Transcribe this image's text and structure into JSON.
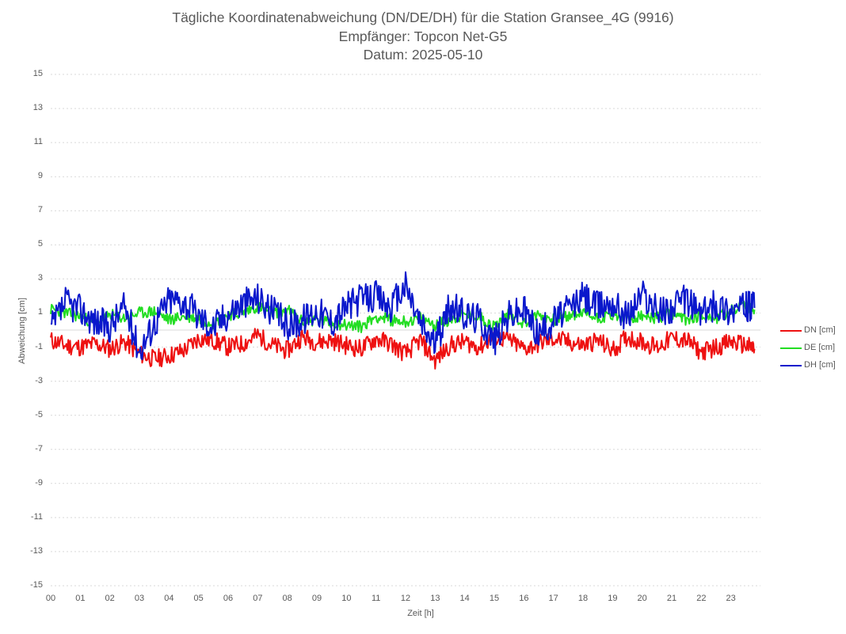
{
  "title": {
    "line1": "Tägliche Koordinatenabweichung (DN/DE/DH) für die Station Gransee_4G (9916)",
    "line2": "Empfänger: Topcon Net-G5",
    "line3": "Datum: 2025-05-10"
  },
  "chart_data": {
    "type": "line",
    "title": "Tägliche Koordinatenabweichung (DN/DE/DH) für die Station Gransee_4G (9916)",
    "subtitle": [
      "Empfänger: Topcon Net-G5",
      "Datum: 2025-05-10"
    ],
    "xlabel": "Zeit [h]",
    "ylabel": "Abweichung [cm]",
    "xlim": [
      0,
      24
    ],
    "ylim": [
      -15,
      15
    ],
    "x_ticks": [
      "00",
      "01",
      "02",
      "03",
      "04",
      "05",
      "06",
      "07",
      "08",
      "09",
      "10",
      "11",
      "12",
      "13",
      "14",
      "15",
      "16",
      "17",
      "18",
      "19",
      "20",
      "21",
      "22",
      "23"
    ],
    "y_ticks": [
      15,
      13,
      11,
      9,
      7,
      5,
      3,
      1,
      -1,
      -3,
      -5,
      -7,
      -9,
      -11,
      -13,
      -15
    ],
    "grid": "horizontal dotted",
    "legend_position": "right",
    "x": [
      0,
      0.5,
      1,
      1.5,
      2,
      2.5,
      3,
      3.5,
      4,
      4.5,
      5,
      5.5,
      6,
      6.5,
      7,
      7.5,
      8,
      8.5,
      9,
      9.5,
      10,
      10.5,
      11,
      11.5,
      12,
      12.5,
      13,
      13.5,
      14,
      14.5,
      15,
      15.5,
      16,
      16.5,
      17,
      17.5,
      18,
      18.5,
      19,
      19.5,
      20,
      20.5,
      21,
      21.5,
      22,
      22.5,
      23,
      23.5,
      23.8
    ],
    "series": [
      {
        "name": "DN [cm]",
        "color": "#ee1111",
        "values": [
          -0.6,
          -0.9,
          -1.0,
          -0.8,
          -1.1,
          -0.7,
          -1.4,
          -1.7,
          -1.5,
          -1.2,
          -0.5,
          -0.6,
          -1.0,
          -0.8,
          -0.3,
          -0.9,
          -1.2,
          -0.4,
          -0.7,
          -0.6,
          -0.9,
          -1.1,
          -0.5,
          -0.8,
          -1.4,
          -0.6,
          -1.8,
          -0.9,
          -0.7,
          -1.0,
          -0.4,
          -0.6,
          -1.1,
          -0.8,
          -0.5,
          -0.7,
          -0.9,
          -0.6,
          -1.2,
          -0.4,
          -0.7,
          -1.0,
          -0.5,
          -0.6,
          -1.3,
          -1.0,
          -0.7,
          -0.9,
          -1.1
        ]
      },
      {
        "name": "DE [cm]",
        "color": "#22dd22",
        "values": [
          1.2,
          1.0,
          0.8,
          0.4,
          0.9,
          0.7,
          1.0,
          1.1,
          0.6,
          0.8,
          0.7,
          0.4,
          0.9,
          1.0,
          1.4,
          1.0,
          1.2,
          0.5,
          0.6,
          0.4,
          0.3,
          0.2,
          0.8,
          0.6,
          0.5,
          0.7,
          0.3,
          0.6,
          0.9,
          0.8,
          0.2,
          1.0,
          0.4,
          0.9,
          0.6,
          0.8,
          1.0,
          0.7,
          0.9,
          0.6,
          0.8,
          0.7,
          1.0,
          0.6,
          0.9,
          0.7,
          1.1,
          1.5,
          1.2
        ]
      },
      {
        "name": "DH [cm]",
        "color": "#0a18cc",
        "values": [
          0.0,
          1.6,
          1.2,
          0.5,
          0.2,
          1.4,
          -1.2,
          0.4,
          1.8,
          1.7,
          0.8,
          0.2,
          1.0,
          1.6,
          1.9,
          1.1,
          0.3,
          0.6,
          1.2,
          0.5,
          1.4,
          1.8,
          2.0,
          1.3,
          2.6,
          0.4,
          -0.8,
          1.4,
          0.9,
          0.7,
          -0.6,
          0.9,
          1.2,
          -0.2,
          0.6,
          1.2,
          2.0,
          1.4,
          1.7,
          0.8,
          2.2,
          1.1,
          1.3,
          1.8,
          1.0,
          1.5,
          1.2,
          1.4,
          1.3
        ]
      }
    ]
  }
}
